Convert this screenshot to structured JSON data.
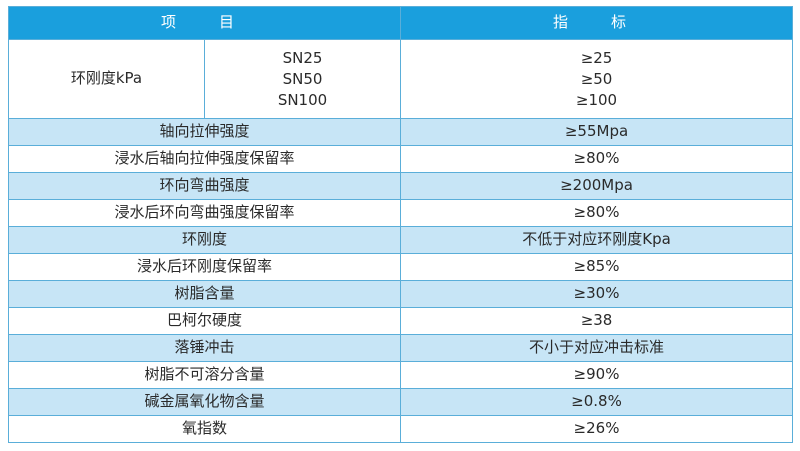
{
  "header": {
    "item": "项　目",
    "index": "指　标"
  },
  "ring_stiffness": {
    "label": "环刚度kPa",
    "grades": [
      "SN25",
      "SN50",
      "SN100"
    ],
    "values": [
      "≥25",
      "≥50",
      "≥100"
    ]
  },
  "rows": [
    {
      "item": "轴向拉伸强度",
      "value": "≥55Mpa"
    },
    {
      "item": "浸水后轴向拉伸强度保留率",
      "value": "≥80%"
    },
    {
      "item": "环向弯曲强度",
      "value": "≥200Mpa"
    },
    {
      "item": "浸水后环向弯曲强度保留率",
      "value": "≥80%"
    },
    {
      "item": "环刚度",
      "value": "不低于对应环刚度Kpa"
    },
    {
      "item": "浸水后环刚度保留率",
      "value": "≥85%"
    },
    {
      "item": "树脂含量",
      "value": "≥30%"
    },
    {
      "item": "巴柯尔硬度",
      "value": "≥38"
    },
    {
      "item": "落锤冲击",
      "value": "不小于对应冲击标准"
    },
    {
      "item": "树脂不可溶分含量",
      "value": "≥90%"
    },
    {
      "item": "碱金属氧化物含量",
      "value": "≥0.8%"
    },
    {
      "item": "氧指数",
      "value": "≥26%"
    }
  ]
}
